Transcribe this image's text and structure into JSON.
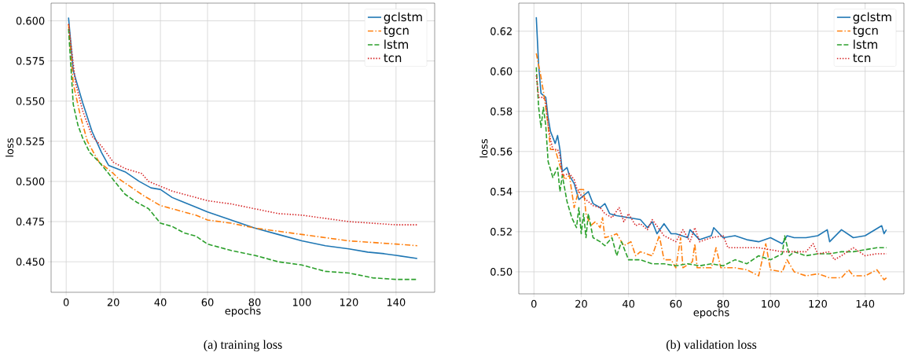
{
  "chart_data": [
    {
      "type": "line",
      "xlabel": "epochs",
      "ylabel": "loss",
      "annotations": [
        "(a) training loss"
      ],
      "xlim": [
        -6.4,
        156.4
      ],
      "ylim": [
        0.431,
        0.611
      ],
      "xticks": [
        0,
        20,
        40,
        60,
        80,
        100,
        120,
        140
      ],
      "yticks": [
        {
          "value": 0.45,
          "label": "0.450"
        },
        {
          "value": 0.475,
          "label": "0.475"
        },
        {
          "value": 0.5,
          "label": "0.500"
        },
        {
          "value": 0.525,
          "label": "0.525"
        },
        {
          "value": 0.55,
          "label": "0.550"
        },
        {
          "value": 0.575,
          "label": "0.575"
        },
        {
          "value": 0.6,
          "label": "0.600"
        }
      ],
      "grid": true,
      "legend": "top right",
      "marker": "none",
      "series": [
        {
          "name": "gclstm",
          "color": "#1f77b4",
          "line_style": "solid",
          "x": [
            1,
            3,
            7,
            11,
            15,
            18,
            25,
            31,
            36,
            40,
            45,
            50,
            60,
            70,
            80,
            90,
            100,
            110,
            120,
            128,
            135,
            140,
            149
          ],
          "values": [
            0.602,
            0.569,
            0.549,
            0.531,
            0.518,
            0.51,
            0.506,
            0.5,
            0.496,
            0.495,
            0.49,
            0.487,
            0.481,
            0.476,
            0.471,
            0.467,
            0.463,
            0.46,
            0.458,
            0.456,
            0.455,
            0.454,
            0.452
          ]
        },
        {
          "name": "tgcn",
          "color": "#ff7f0e",
          "line_style": "dashdot",
          "x": [
            1,
            3,
            6,
            9,
            12,
            14,
            20,
            22,
            28,
            33,
            40,
            45,
            50,
            55,
            60,
            70,
            80,
            90,
            100,
            110,
            120,
            130,
            140,
            149
          ],
          "values": [
            0.598,
            0.561,
            0.541,
            0.525,
            0.517,
            0.512,
            0.505,
            0.502,
            0.496,
            0.491,
            0.485,
            0.483,
            0.481,
            0.479,
            0.476,
            0.474,
            0.471,
            0.469,
            0.467,
            0.465,
            0.463,
            0.462,
            0.461,
            0.46
          ]
        },
        {
          "name": "lstm",
          "color": "#2ca02c",
          "line_style": "dashed",
          "x": [
            1,
            3,
            5,
            7,
            10,
            14,
            18,
            20,
            25,
            30,
            35,
            40,
            45,
            50,
            55,
            60,
            70,
            80,
            90,
            100,
            110,
            120,
            130,
            140,
            149
          ],
          "values": [
            0.595,
            0.548,
            0.535,
            0.527,
            0.518,
            0.512,
            0.505,
            0.501,
            0.492,
            0.487,
            0.483,
            0.474,
            0.472,
            0.468,
            0.466,
            0.461,
            0.457,
            0.454,
            0.45,
            0.448,
            0.444,
            0.443,
            0.44,
            0.439,
            0.439
          ]
        },
        {
          "name": "tcn",
          "color": "#d62728",
          "line_style": "dotted",
          "x": [
            1,
            4,
            7,
            11,
            15,
            20,
            25,
            32,
            35,
            40,
            45,
            50,
            60,
            70,
            80,
            90,
            100,
            110,
            120,
            130,
            140,
            149
          ],
          "values": [
            0.598,
            0.561,
            0.544,
            0.528,
            0.522,
            0.512,
            0.508,
            0.505,
            0.5,
            0.497,
            0.494,
            0.492,
            0.488,
            0.486,
            0.483,
            0.48,
            0.479,
            0.477,
            0.475,
            0.474,
            0.473,
            0.473
          ]
        }
      ]
    },
    {
      "type": "line",
      "xlabel": "epochs",
      "ylabel": "loss",
      "annotations": [
        "(b) validation loss"
      ],
      "xlim": [
        -6.4,
        156.4
      ],
      "ylim": [
        0.489,
        0.634
      ],
      "xticks": [
        0,
        20,
        40,
        60,
        80,
        100,
        120,
        140
      ],
      "yticks": [
        {
          "value": 0.5,
          "label": "0.50"
        },
        {
          "value": 0.52,
          "label": "0.52"
        },
        {
          "value": 0.54,
          "label": "0.54"
        },
        {
          "value": 0.56,
          "label": "0.56"
        },
        {
          "value": 0.58,
          "label": "0.58"
        },
        {
          "value": 0.6,
          "label": "0.60"
        },
        {
          "value": 0.62,
          "label": "0.62"
        }
      ],
      "grid": true,
      "legend": "top right",
      "marker": "none",
      "series": [
        {
          "name": "gclstm",
          "color": "#1f77b4",
          "line_style": "solid",
          "x": [
            1,
            2,
            3,
            5,
            6,
            7,
            9,
            10,
            11,
            12,
            14,
            15,
            17,
            19,
            21,
            23,
            25,
            28,
            30,
            32,
            35,
            40,
            45,
            48,
            50,
            52,
            55,
            58,
            60,
            65,
            66,
            70,
            75,
            76,
            80,
            85,
            90,
            95,
            100,
            105,
            107,
            110,
            115,
            120,
            124,
            125,
            130,
            135,
            140,
            147,
            148,
            149
          ],
          "values": [
            0.627,
            0.603,
            0.589,
            0.587,
            0.577,
            0.57,
            0.564,
            0.568,
            0.561,
            0.55,
            0.552,
            0.548,
            0.544,
            0.536,
            0.538,
            0.54,
            0.534,
            0.532,
            0.534,
            0.529,
            0.528,
            0.527,
            0.526,
            0.522,
            0.525,
            0.519,
            0.524,
            0.519,
            0.519,
            0.517,
            0.521,
            0.516,
            0.518,
            0.522,
            0.517,
            0.518,
            0.516,
            0.515,
            0.517,
            0.514,
            0.518,
            0.517,
            0.517,
            0.518,
            0.521,
            0.515,
            0.521,
            0.517,
            0.518,
            0.523,
            0.519,
            0.521
          ]
        },
        {
          "name": "tgcn",
          "color": "#ff7f0e",
          "line_style": "dashdot",
          "x": [
            1,
            3,
            4,
            5,
            6,
            7,
            9,
            11,
            13,
            15,
            17,
            19,
            21,
            22,
            24,
            26,
            28,
            29,
            30,
            33,
            35,
            38,
            41,
            43,
            45,
            50,
            53,
            55,
            58,
            60,
            62,
            63,
            67,
            68,
            69,
            75,
            77,
            79,
            85,
            90,
            95,
            98,
            100,
            105,
            107,
            110,
            115,
            120,
            125,
            130,
            133,
            135,
            140,
            145,
            148,
            149
          ],
          "values": [
            0.609,
            0.597,
            0.59,
            0.582,
            0.573,
            0.561,
            0.561,
            0.553,
            0.546,
            0.548,
            0.532,
            0.541,
            0.541,
            0.529,
            0.523,
            0.525,
            0.522,
            0.527,
            0.517,
            0.518,
            0.519,
            0.513,
            0.515,
            0.508,
            0.51,
            0.508,
            0.518,
            0.506,
            0.506,
            0.502,
            0.517,
            0.502,
            0.505,
            0.514,
            0.502,
            0.502,
            0.512,
            0.502,
            0.502,
            0.501,
            0.498,
            0.514,
            0.501,
            0.5,
            0.506,
            0.5,
            0.498,
            0.499,
            0.497,
            0.497,
            0.501,
            0.498,
            0.498,
            0.501,
            0.496,
            0.497
          ]
        },
        {
          "name": "lstm",
          "color": "#2ca02c",
          "line_style": "dashed",
          "x": [
            1,
            2,
            3,
            4,
            5,
            6,
            8,
            10,
            11,
            12,
            14,
            16,
            18,
            19,
            20,
            21,
            22,
            23,
            25,
            28,
            30,
            33,
            35,
            37,
            40,
            45,
            50,
            55,
            60,
            65,
            70,
            75,
            80,
            85,
            90,
            95,
            100,
            105,
            106,
            108,
            110,
            115,
            120,
            125,
            130,
            135,
            140,
            145,
            149
          ],
          "values": [
            0.602,
            0.582,
            0.572,
            0.582,
            0.573,
            0.555,
            0.547,
            0.552,
            0.54,
            0.548,
            0.535,
            0.527,
            0.522,
            0.532,
            0.519,
            0.529,
            0.517,
            0.529,
            0.517,
            0.515,
            0.513,
            0.517,
            0.508,
            0.515,
            0.506,
            0.506,
            0.504,
            0.504,
            0.503,
            0.504,
            0.503,
            0.504,
            0.503,
            0.506,
            0.504,
            0.508,
            0.506,
            0.509,
            0.518,
            0.508,
            0.51,
            0.508,
            0.509,
            0.509,
            0.51,
            0.51,
            0.511,
            0.512,
            0.512
          ]
        },
        {
          "name": "tcn",
          "color": "#d62728",
          "line_style": "dotted",
          "x": [
            1,
            2,
            4,
            5,
            6,
            7,
            8,
            10,
            11,
            12,
            15,
            17,
            18,
            20,
            23,
            25,
            28,
            30,
            33,
            36,
            38,
            40,
            43,
            45,
            48,
            50,
            55,
            60,
            63,
            66,
            68,
            70,
            75,
            80,
            82,
            85,
            90,
            95,
            100,
            105,
            110,
            115,
            118,
            120,
            125,
            127,
            130,
            135,
            140,
            145,
            149
          ],
          "values": [
            0.598,
            0.587,
            0.587,
            0.585,
            0.573,
            0.566,
            0.561,
            0.561,
            0.558,
            0.548,
            0.549,
            0.546,
            0.542,
            0.538,
            0.535,
            0.533,
            0.532,
            0.529,
            0.527,
            0.532,
            0.525,
            0.529,
            0.523,
            0.524,
            0.521,
            0.526,
            0.518,
            0.515,
            0.521,
            0.515,
            0.522,
            0.515,
            0.517,
            0.518,
            0.512,
            0.512,
            0.512,
            0.512,
            0.511,
            0.51,
            0.51,
            0.51,
            0.514,
            0.509,
            0.51,
            0.506,
            0.508,
            0.512,
            0.508,
            0.509,
            0.509
          ]
        }
      ]
    }
  ]
}
